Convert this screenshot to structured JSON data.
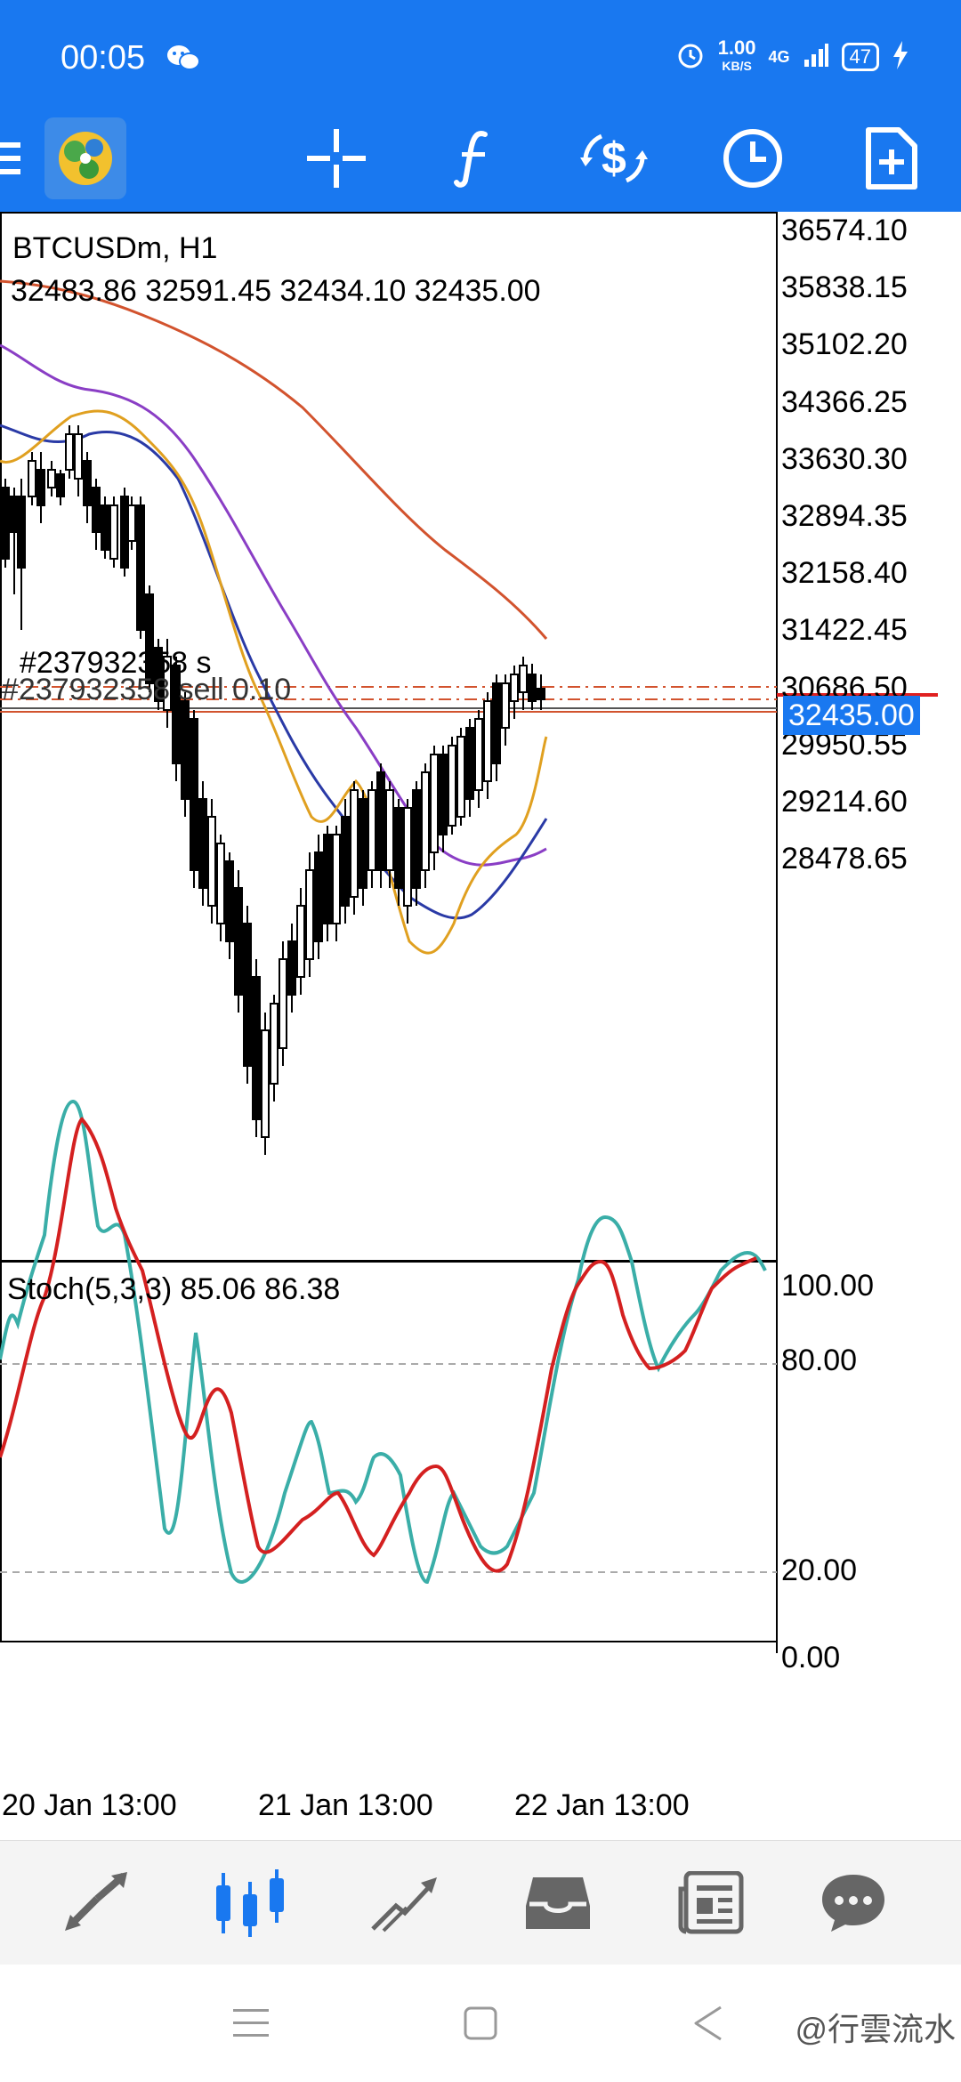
{
  "status_bar": {
    "time": "00:05",
    "net_speed": "1.00",
    "net_speed_unit": "KB/S",
    "network": "4G",
    "battery": "47"
  },
  "toolbar": {
    "icons": [
      "menu-icon",
      "metatrader-logo-icon",
      "crosshair-icon",
      "indicators-icon",
      "trade-icon",
      "period-icon",
      "new-order-icon"
    ]
  },
  "chart": {
    "symbol_title": "BTCUSDm, H1",
    "ohlc": "32483.86 32591.45 32434.10 32435.00",
    "current_price": "32435.00",
    "order_label_1": "#237932358 s",
    "order_label_2": "#237932358 sell 0.10",
    "price_axis": [
      "36574.10",
      "35838.15",
      "35102.20",
      "34366.25",
      "33630.30",
      "32894.35",
      "32158.40",
      "31422.45",
      "30686.50",
      "29950.55",
      "29214.60",
      "28478.65"
    ],
    "colors": {
      "bull_candle": "#ffffff",
      "bear_candle": "#000000",
      "ma_slow": "#d2532e",
      "ma_mid": "#8a3ec5",
      "ma_blue": "#2a3aa6",
      "ma_fast": "#e0a020",
      "accent": "#1978f0"
    }
  },
  "indicator": {
    "title": "Stoch(5,3,3) 85.06 86.38",
    "levels": [
      "100.00",
      "80.00",
      "20.00",
      "0.00"
    ],
    "colors": {
      "main": "#3aaea8",
      "signal": "#d42020"
    }
  },
  "time_axis": [
    "20 Jan 13:00",
    "21 Jan 13:00",
    "22 Jan 13:00"
  ],
  "bottom_nav": {
    "items": [
      "quotes-icon",
      "chart-icon",
      "trade-icon",
      "history-icon",
      "news-icon",
      "messages-icon"
    ],
    "active": "chart-icon"
  },
  "watermark": "@行雲流水"
}
